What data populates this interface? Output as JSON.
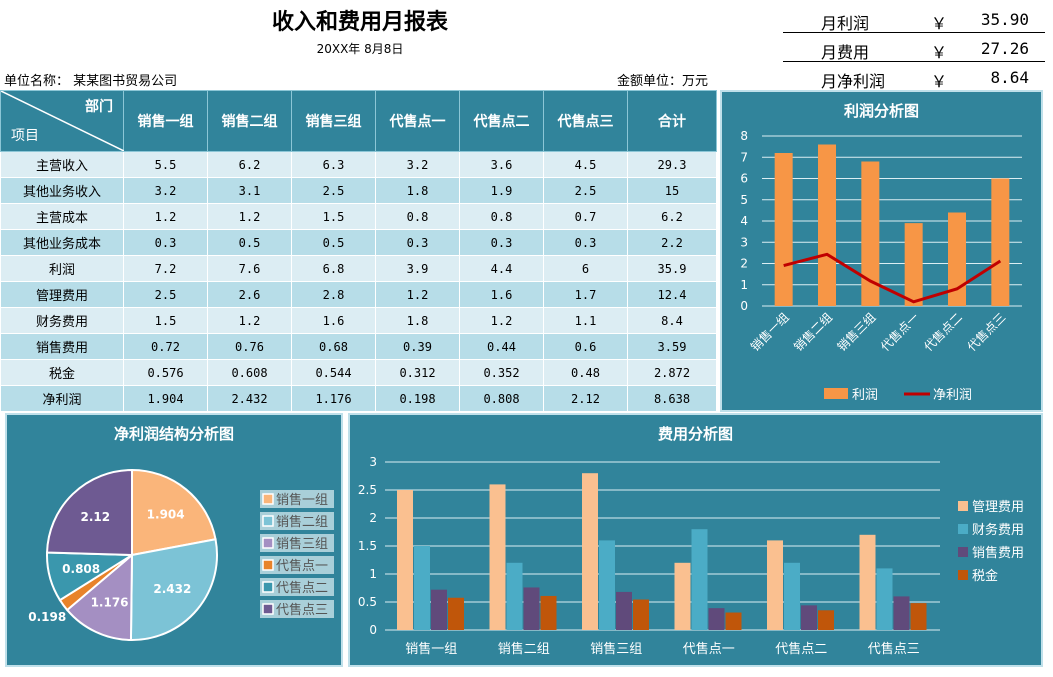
{
  "title": "收入和费用月报表",
  "date": "20XX年 8月8日",
  "unit_label": "单位名称： 某某图书贸易公司",
  "money_unit": "金额单位：万元",
  "summary": [
    {
      "label": "月利润",
      "currency": "￥",
      "value": "35.90"
    },
    {
      "label": "月费用",
      "currency": "￥",
      "value": "27.26"
    },
    {
      "label": "月净利润",
      "currency": "￥",
      "value": "8.64"
    }
  ],
  "table": {
    "corner_top": "部门",
    "corner_bottom": "项目",
    "headers": [
      "销售一组",
      "销售二组",
      "销售三组",
      "代售点一",
      "代售点二",
      "代售点三",
      "合计"
    ],
    "rows": [
      {
        "name": "主营收入",
        "values": [
          "5.5",
          "6.2",
          "6.3",
          "3.2",
          "3.6",
          "4.5",
          "29.3"
        ]
      },
      {
        "name": "其他业务收入",
        "values": [
          "3.2",
          "3.1",
          "2.5",
          "1.8",
          "1.9",
          "2.5",
          "15"
        ]
      },
      {
        "name": "主营成本",
        "values": [
          "1.2",
          "1.2",
          "1.5",
          "0.8",
          "0.8",
          "0.7",
          "6.2"
        ]
      },
      {
        "name": "其他业务成本",
        "values": [
          "0.3",
          "0.5",
          "0.5",
          "0.3",
          "0.3",
          "0.3",
          "2.2"
        ]
      },
      {
        "name": "利润",
        "values": [
          "7.2",
          "7.6",
          "6.8",
          "3.9",
          "4.4",
          "6",
          "35.9"
        ]
      },
      {
        "name": "管理费用",
        "values": [
          "2.5",
          "2.6",
          "2.8",
          "1.2",
          "1.6",
          "1.7",
          "12.4"
        ]
      },
      {
        "name": "财务费用",
        "values": [
          "1.5",
          "1.2",
          "1.6",
          "1.8",
          "1.2",
          "1.1",
          "8.4"
        ]
      },
      {
        "name": "销售费用",
        "values": [
          "0.72",
          "0.76",
          "0.68",
          "0.39",
          "0.44",
          "0.6",
          "3.59"
        ]
      },
      {
        "name": "税金",
        "values": [
          "0.576",
          "0.608",
          "0.544",
          "0.312",
          "0.352",
          "0.48",
          "2.872"
        ]
      },
      {
        "name": "净利润",
        "values": [
          "1.904",
          "2.432",
          "1.176",
          "0.198",
          "0.808",
          "2.12",
          "8.638"
        ]
      }
    ]
  },
  "chart_data": [
    {
      "type": "bar",
      "title": "利润分析图",
      "categories": [
        "销售一组",
        "销售二组",
        "销售三组",
        "代售点一",
        "代售点二",
        "代售点三"
      ],
      "series": [
        {
          "name": "利润",
          "type": "bar",
          "values": [
            7.2,
            7.6,
            6.8,
            3.9,
            4.4,
            6
          ],
          "color": "#f79646"
        },
        {
          "name": "净利润",
          "type": "line",
          "values": [
            1.904,
            2.432,
            1.176,
            0.198,
            0.808,
            2.12
          ],
          "color": "#c00000"
        }
      ],
      "ylim": [
        0,
        8
      ],
      "yticks": [
        0,
        1,
        2,
        3,
        4,
        5,
        6,
        7,
        8
      ],
      "grid": true,
      "legend": "bottom"
    },
    {
      "type": "pie",
      "title": "净利润结构分析图",
      "categories": [
        "销售一组",
        "销售二组",
        "销售三组",
        "代售点一",
        "代售点二",
        "代售点三"
      ],
      "values": [
        1.904,
        2.432,
        1.176,
        0.198,
        0.808,
        2.12
      ],
      "labels": [
        "1.904",
        "2.432",
        "1.176",
        "0.198",
        "0.808",
        "2.12"
      ],
      "colors": [
        "#fab57a",
        "#7cc3d6",
        "#a48fc2",
        "#e8832a",
        "#3a97ad",
        "#6e5a92"
      ],
      "legend": "right"
    },
    {
      "type": "bar",
      "title": "费用分析图",
      "categories": [
        "销售一组",
        "销售二组",
        "销售三组",
        "代售点一",
        "代售点二",
        "代售点三"
      ],
      "series": [
        {
          "name": "管理费用",
          "values": [
            2.5,
            2.6,
            2.8,
            1.2,
            1.6,
            1.7
          ],
          "color": "#fac090"
        },
        {
          "name": "财务费用",
          "values": [
            1.5,
            1.2,
            1.6,
            1.8,
            1.2,
            1.1
          ],
          "color": "#4bacc6"
        },
        {
          "name": "销售费用",
          "values": [
            0.72,
            0.76,
            0.68,
            0.39,
            0.44,
            0.6
          ],
          "color": "#604a7b"
        },
        {
          "name": "税金",
          "values": [
            0.576,
            0.608,
            0.544,
            0.312,
            0.352,
            0.48
          ],
          "color": "#c0560a"
        }
      ],
      "ylim": [
        0,
        3
      ],
      "yticks": [
        0,
        0.5,
        1,
        1.5,
        2,
        2.5,
        3
      ],
      "grid": true,
      "legend": "right"
    }
  ]
}
